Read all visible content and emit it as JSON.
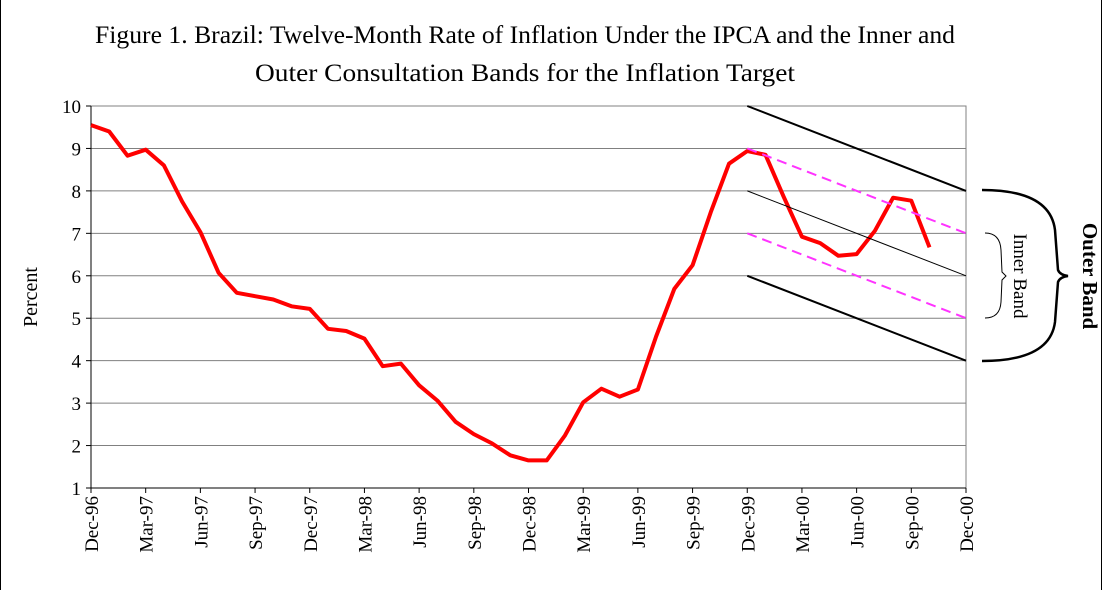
{
  "chart_data": {
    "type": "line",
    "title": [
      "Figure 1. Brazil: Twelve-Month Rate of Inflation Under the IPCA and the Inner and",
      "Outer Consultation Bands for the Inflation Target"
    ],
    "y_label": "Percent",
    "categories": [
      "Dec-96",
      null,
      null,
      "Mar-97",
      null,
      null,
      "Jun-97",
      null,
      null,
      "Sep-97",
      null,
      null,
      "Dec-97",
      null,
      null,
      "Mar-98",
      null,
      null,
      "Jun-98",
      null,
      null,
      "Sep-98",
      null,
      null,
      "Dec-98",
      null,
      null,
      "Mar-99",
      null,
      null,
      "Jun-99",
      null,
      null,
      "Sep-99",
      null,
      null,
      "Dec-99",
      null,
      null,
      "Mar-00",
      null,
      null,
      "Jun-00",
      null,
      null,
      "Sep-00",
      null,
      null,
      "Dec-00"
    ],
    "series": [
      {
        "color": "#ff0000",
        "width": 4,
        "values": [
          9.55,
          9.4,
          8.83,
          8.97,
          8.6,
          7.75,
          7.03,
          6.07,
          5.6,
          5.52,
          5.44,
          5.28,
          5.22,
          4.75,
          4.7,
          4.52,
          3.87,
          3.93,
          3.42,
          3.06,
          2.56,
          2.27,
          2.05,
          1.77,
          1.65,
          1.65,
          2.24,
          3.02,
          3.34,
          3.15,
          3.32,
          4.57,
          5.69,
          6.25,
          7.5,
          8.64,
          8.94,
          8.85,
          7.86,
          6.92,
          6.77,
          6.47,
          6.51,
          7.06,
          7.84,
          7.77,
          6.67,
          null,
          null
        ]
      },
      {
        "color": "#000000",
        "width": 2,
        "x": [
          "Dec-99",
          "Dec-00"
        ],
        "values": [
          10,
          8
        ]
      },
      {
        "color": "#000000",
        "width": 2,
        "x": [
          "Dec-99",
          "Dec-00"
        ],
        "values": [
          6,
          4
        ]
      },
      {
        "color": "#000000",
        "width": 1,
        "x": [
          "Dec-99",
          "Dec-00"
        ],
        "values": [
          8,
          6
        ]
      },
      {
        "color": "#ff33ff",
        "width": 2,
        "dash": true,
        "x": [
          "Dec-99",
          "Dec-00"
        ],
        "values": [
          9,
          7
        ]
      },
      {
        "color": "#ff33ff",
        "width": 2,
        "dash": true,
        "x": [
          "Dec-99",
          "Dec-00"
        ],
        "values": [
          7,
          5
        ]
      }
    ],
    "annotations": [
      "Outer Band",
      "Inner Band"
    ],
    "ylim": [
      1,
      10
    ],
    "yticks": [
      1,
      2,
      3,
      4,
      5,
      6,
      7,
      8,
      9,
      10
    ],
    "grid": true
  }
}
